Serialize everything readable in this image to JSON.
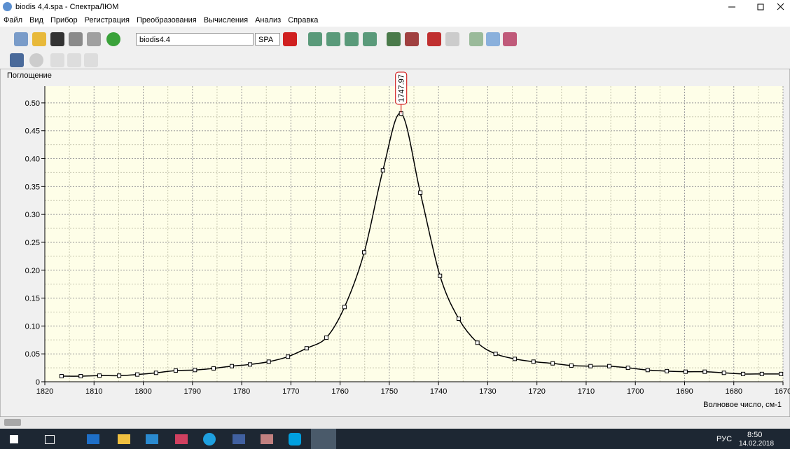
{
  "window": {
    "title": "biodis 4,4.spa - СпектраЛЮМ"
  },
  "menu": [
    "Файл",
    "Вид",
    "Прибор",
    "Регистрация",
    "Преобразования",
    "Вычисления",
    "Анализ",
    "Справка"
  ],
  "toolbar": {
    "file_combo": "biodis4.4",
    "format_combo": "SPA"
  },
  "chart_data": {
    "type": "line",
    "ylabel": "Поглощение",
    "xlabel": "Волновое число, см-1",
    "x": [
      1816.6,
      1812.7,
      1808.9,
      1804.9,
      1801.2,
      1797.4,
      1793.4,
      1789.5,
      1785.7,
      1782.0,
      1778.3,
      1774.5,
      1770.6,
      1766.8,
      1762.8,
      1759.1,
      1755.1,
      1751.3,
      1747.6,
      1743.7,
      1739.7,
      1735.9,
      1732.1,
      1728.4,
      1724.5,
      1720.7,
      1716.8,
      1713.0,
      1709.1,
      1705.3,
      1701.5,
      1697.5,
      1693.6,
      1689.8,
      1685.9,
      1682.0,
      1678.1,
      1674.3,
      1670.4
    ],
    "series": [
      {
        "color": "#000000",
        "values": [
          0.01,
          0.01,
          0.011,
          0.011,
          0.013,
          0.016,
          0.02,
          0.021,
          0.024,
          0.028,
          0.031,
          0.036,
          0.045,
          0.06,
          0.079,
          0.134,
          0.232,
          0.379,
          0.481,
          0.339,
          0.19,
          0.113,
          0.07,
          0.05,
          0.041,
          0.036,
          0.033,
          0.029,
          0.028,
          0.028,
          0.025,
          0.021,
          0.019,
          0.018,
          0.018,
          0.016,
          0.014,
          0.014,
          0.014
        ]
      }
    ],
    "annotations": [
      {
        "text": "1747.97"
      }
    ],
    "xlim": [
      1820,
      1670
    ],
    "ylim": [
      0,
      0.53
    ],
    "xticks": [
      1820,
      1810,
      1800,
      1790,
      1780,
      1770,
      1760,
      1750,
      1740,
      1730,
      1720,
      1710,
      1700,
      1690,
      1680,
      1670
    ],
    "yticks": [
      {
        "value": 0,
        "label": "0"
      },
      0.05,
      {
        "value": 0.1,
        "label": "0.10"
      },
      0.15,
      {
        "value": 0.2,
        "label": "0.20"
      },
      0.25,
      {
        "value": 0.3,
        "label": "0.30"
      },
      0.35,
      {
        "value": 0.4,
        "label": "0.40"
      },
      0.45,
      {
        "value": 0.5,
        "label": "0.50"
      }
    ],
    "grid": true
  },
  "taskbar": {
    "language": "РУС",
    "time": "8:50",
    "date": "14.02.2018"
  }
}
